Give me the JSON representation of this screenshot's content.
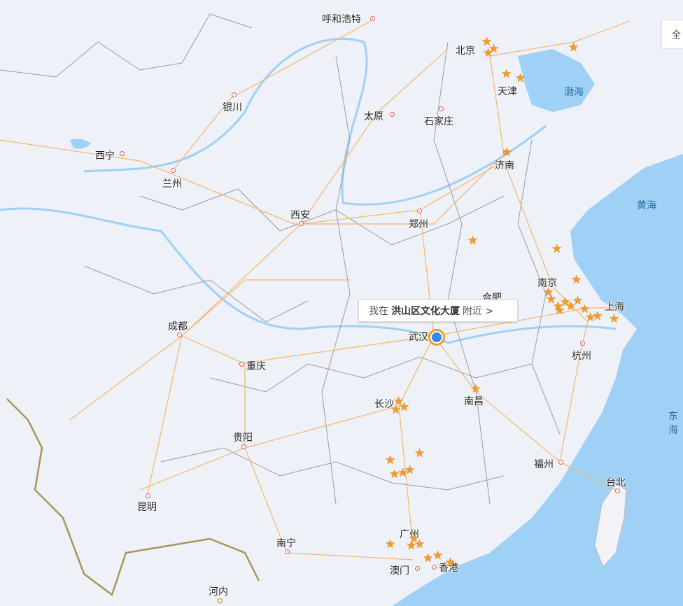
{
  "full_button": "全",
  "tooltip": {
    "prefix": "我在",
    "place": "洪山区文化大厦",
    "suffix": "附近 >"
  },
  "cities": {
    "huhehaote": "呼和浩特",
    "beijing": "北京",
    "tianjin": "天津",
    "yinchuan": "银川",
    "taiyuan": "太原",
    "shijiazhuang": "石家庄",
    "xining": "西宁",
    "lanzhou": "兰州",
    "jinan": "济南",
    "xian": "西安",
    "zhengzhou": "郑州",
    "nanjing": "南京",
    "hefei": "合肥",
    "shanghai": "上海",
    "chengdu": "成都",
    "wuhan": "武汉",
    "chongqing": "重庆",
    "hangzhou": "杭州",
    "nanchang": "南昌",
    "changsha": "长沙",
    "guiyang": "贵阳",
    "fuzhou": "福州",
    "taibei": "台北",
    "kunming": "昆明",
    "guangzhou": "广州",
    "nanning": "南宁",
    "aomen": "澳门",
    "xianggang": "香港",
    "henei": "河内"
  },
  "seas": {
    "bohai": "渤海",
    "huanghai": "黄海",
    "donghai": "东海"
  },
  "colors": {
    "road": "#f7b46c",
    "border": "#9a9aa5",
    "water": "#9fd0f5",
    "marker": "#f39a2a"
  }
}
